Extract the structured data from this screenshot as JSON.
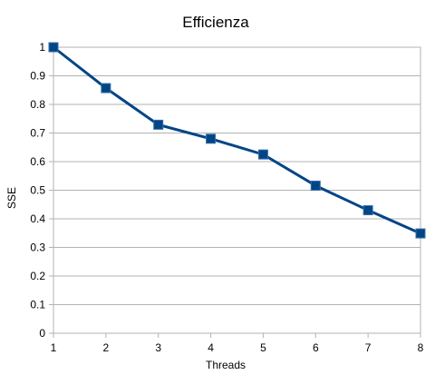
{
  "chart_data": {
    "type": "line",
    "title": "Efficienza",
    "xlabel": "Threads",
    "ylabel": "SSE",
    "x": [
      1,
      2,
      3,
      4,
      5,
      6,
      7,
      8
    ],
    "series": [
      {
        "values": [
          1.0,
          0.857,
          0.729,
          0.68,
          0.625,
          0.516,
          0.43,
          0.349
        ]
      }
    ],
    "xlim": [
      1,
      8
    ],
    "ylim": [
      0,
      1
    ],
    "x_ticks": [
      "1",
      "2",
      "3",
      "4",
      "5",
      "6",
      "7",
      "8"
    ],
    "y_ticks": [
      "0",
      "0.1",
      "0.2",
      "0.3",
      "0.4",
      "0.5",
      "0.6",
      "0.7",
      "0.8",
      "0.9",
      "1"
    ],
    "grid": true,
    "legend": "none",
    "line_color": "#004586",
    "marker": "square"
  }
}
